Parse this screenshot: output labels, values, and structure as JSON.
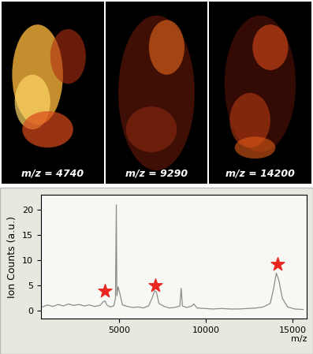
{
  "images": [
    {
      "label": "m/z = 4740"
    },
    {
      "label": "m/z = 9290"
    },
    {
      "label": "m/z = 14200"
    }
  ],
  "chart_data": {
    "type": "line",
    "x_label": "m/z",
    "y_label": "Ion Counts (a.u.)",
    "x": [
      600,
      900,
      1200,
      1500,
      1800,
      2100,
      2400,
      2700,
      3000,
      3300,
      3600,
      3900,
      4100,
      4200,
      4300,
      4500,
      4700,
      4800,
      4850,
      4880,
      4950,
      5050,
      5200,
      5500,
      5800,
      6100,
      6400,
      6700,
      6900,
      7050,
      7150,
      7300,
      7600,
      7900,
      8200,
      8500,
      8580,
      8650,
      8900,
      9200,
      9300,
      9500,
      9900,
      10400,
      10900,
      11400,
      11900,
      12400,
      12900,
      13300,
      13700,
      13900,
      14050,
      14200,
      14400,
      14700,
      15100,
      15600
    ],
    "values": [
      0.8,
      1.2,
      0.9,
      1.3,
      1.0,
      1.4,
      1.1,
      1.3,
      1.0,
      1.2,
      0.9,
      1.1,
      1.8,
      2.0,
      1.2,
      0.8,
      1.0,
      2.5,
      21.0,
      3.0,
      4.8,
      3.5,
      1.2,
      0.9,
      0.7,
      0.8,
      0.6,
      1.0,
      2.5,
      4.0,
      3.8,
      1.5,
      0.9,
      0.6,
      0.7,
      1.0,
      4.5,
      1.0,
      0.7,
      1.0,
      1.4,
      0.6,
      0.5,
      0.4,
      0.5,
      0.4,
      0.4,
      0.5,
      0.6,
      0.8,
      1.5,
      4.5,
      7.5,
      6.0,
      2.5,
      0.8,
      0.4,
      0.3
    ],
    "color": "#8c8c8c",
    "stars": {
      "x": [
        4200,
        7100,
        14100
      ],
      "values": [
        4.0,
        5.0,
        9.2
      ],
      "color": "#e8251f",
      "marker": "*"
    },
    "xlim": [
      500,
      15800
    ],
    "ylim": [
      -1.5,
      23
    ],
    "xticks": [
      5000,
      10000,
      15000
    ],
    "yticks": [
      0,
      5,
      10,
      15,
      20
    ],
    "grid": false
  }
}
